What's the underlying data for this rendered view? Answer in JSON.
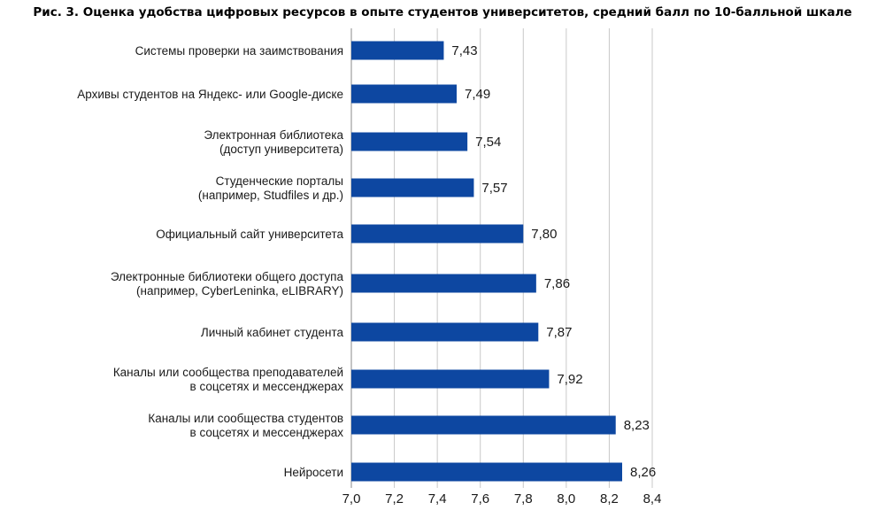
{
  "chart_data": {
    "type": "bar",
    "orientation": "horizontal",
    "title": "Рис. 3. Оценка удобства цифровых ресурсов в опыте студентов университетов, средний балл по 10-балльной шкале",
    "xlabel": "",
    "ylabel": "",
    "xlim": [
      7.0,
      8.4
    ],
    "x_ticks": [
      "7,0",
      "7,2",
      "7,4",
      "7,6",
      "7,8",
      "8,0",
      "8,2",
      "8,4"
    ],
    "x_tick_values": [
      7.0,
      7.2,
      7.4,
      7.6,
      7.8,
      8.0,
      8.2,
      8.4
    ],
    "grid": "vertical",
    "legend": "none",
    "bar_color": "#0d47a1",
    "categories": [
      [
        "Системы проверки на заимствования"
      ],
      [
        "Архивы студентов на Яндекс- или Google-диске"
      ],
      [
        "Электронная библиотека",
        "(доступ университета)"
      ],
      [
        "Студенческие порталы",
        "(например, Studfiles и др.)"
      ],
      [
        "Официальный сайт университета"
      ],
      [
        "Электронные библиотеки общего доступа",
        "(например, CyberLeninka, eLIBRARY)"
      ],
      [
        "Личный кабинет студента"
      ],
      [
        "Каналы или сообщества преподавателей",
        "в соцсетях и мессенджерах"
      ],
      [
        "Каналы или сообщества студентов",
        "в соцсетях и мессенджерах"
      ],
      [
        "Нейросети"
      ]
    ],
    "values": [
      7.43,
      7.49,
      7.54,
      7.57,
      7.8,
      7.86,
      7.87,
      7.92,
      8.23,
      8.26
    ],
    "value_labels": [
      "7,43",
      "7,49",
      "7,54",
      "7,57",
      "7,80",
      "7,86",
      "7,87",
      "7,92",
      "8,23",
      "8,26"
    ]
  }
}
